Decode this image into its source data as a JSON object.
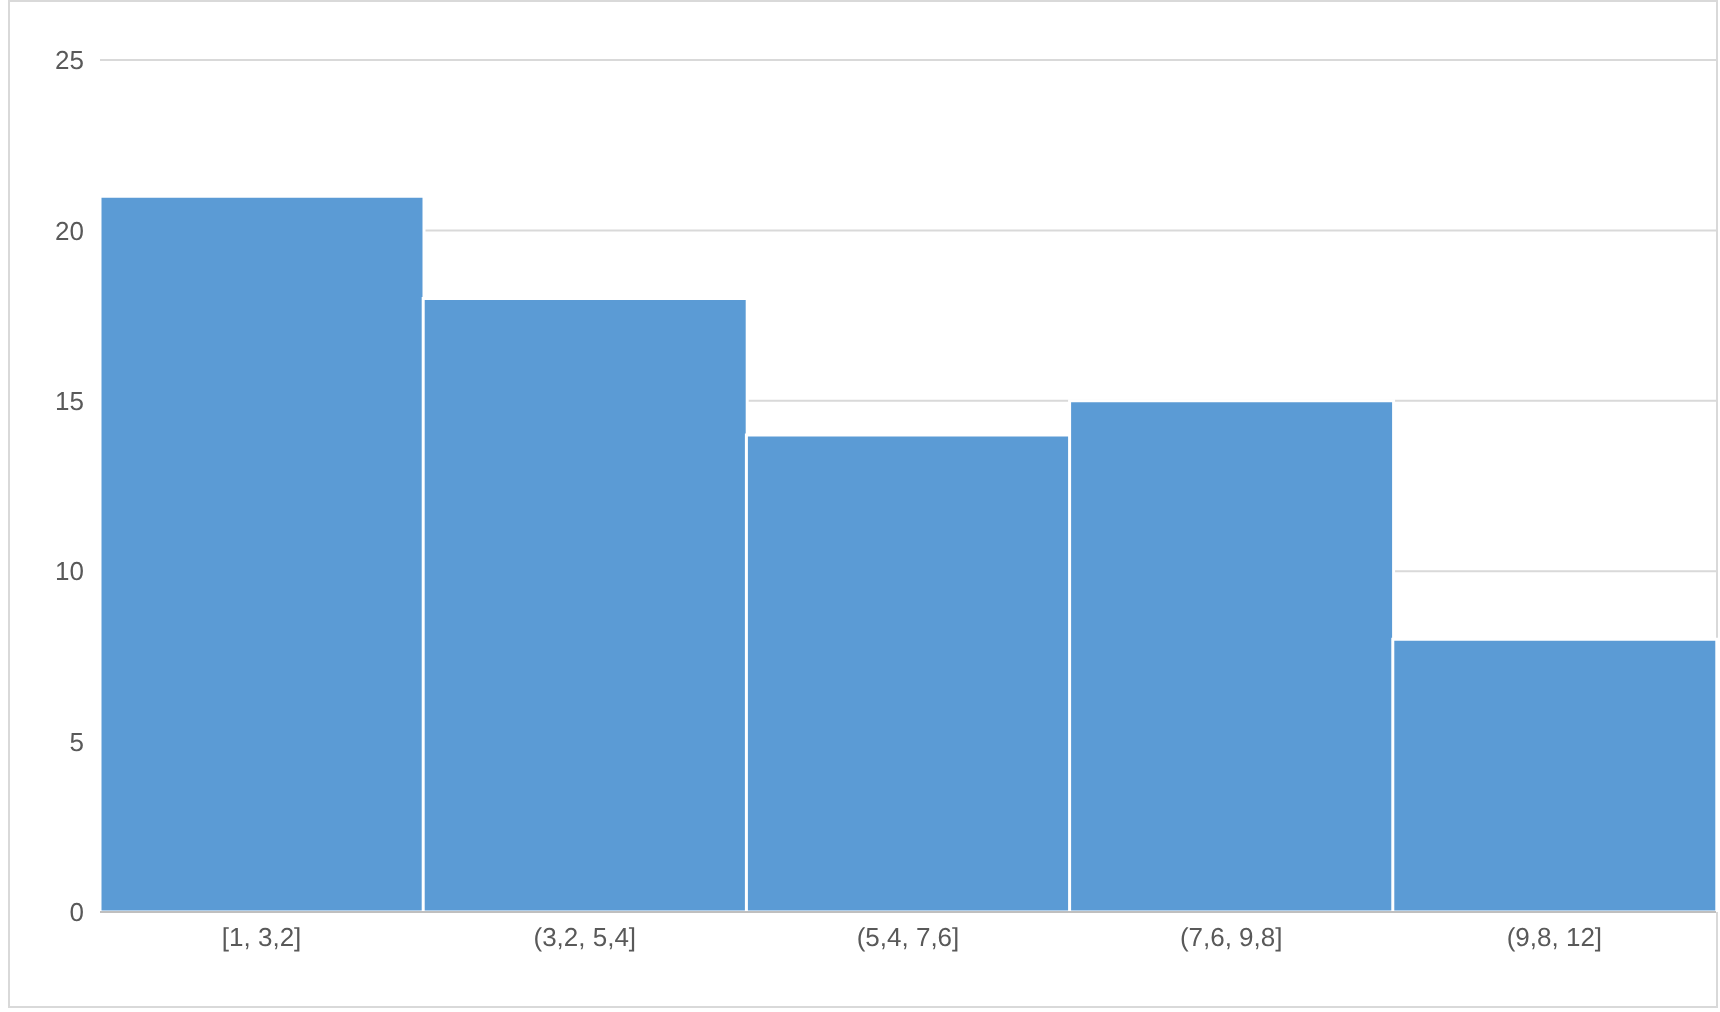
{
  "chart_data": {
    "type": "bar",
    "categories": [
      "[1, 3,2]",
      "(3,2, 5,4]",
      "(5,4, 7,6]",
      "(7,6, 9,8]",
      "(9,8, 12]"
    ],
    "values": [
      21,
      18,
      14,
      15,
      8
    ],
    "color": "#5b9bd5",
    "ylim": [
      0,
      25
    ],
    "yticks": [
      0,
      5,
      10,
      15,
      20,
      25
    ],
    "grid": "y"
  }
}
